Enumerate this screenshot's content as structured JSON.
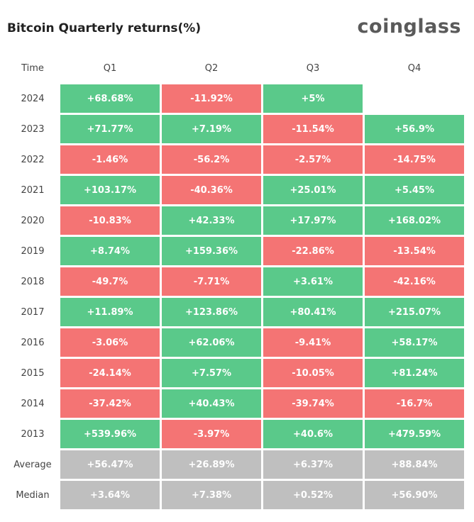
{
  "header": {
    "title": "Bitcoin Quarterly returns(%)",
    "logo": "coinglass"
  },
  "table": {
    "columns": [
      "Time",
      "Q1",
      "Q2",
      "Q3",
      "Q4"
    ],
    "colors": {
      "positive": "#5ac98a",
      "negative": "#f47474",
      "summary": "#bfbfbf"
    },
    "rows": [
      [
        "2024",
        "+68.68%",
        "-11.92%",
        "+5%",
        null
      ],
      [
        "2023",
        "+71.77%",
        "+7.19%",
        "-11.54%",
        "+56.9%"
      ],
      [
        "2022",
        "-1.46%",
        "-56.2%",
        "-2.57%",
        "-14.75%"
      ],
      [
        "2021",
        "+103.17%",
        "-40.36%",
        "+25.01%",
        "+5.45%"
      ],
      [
        "2020",
        "-10.83%",
        "+42.33%",
        "+17.97%",
        "+168.02%"
      ],
      [
        "2019",
        "+8.74%",
        "+159.36%",
        "-22.86%",
        "-13.54%"
      ],
      [
        "2018",
        "-49.7%",
        "-7.71%",
        "+3.61%",
        "-42.16%"
      ],
      [
        "2017",
        "+11.89%",
        "+123.86%",
        "+80.41%",
        "+215.07%"
      ],
      [
        "2016",
        "-3.06%",
        "+62.06%",
        "-9.41%",
        "+58.17%"
      ],
      [
        "2015",
        "-24.14%",
        "+7.57%",
        "-10.05%",
        "+81.24%"
      ],
      [
        "2014",
        "-37.42%",
        "+40.43%",
        "-39.74%",
        "-16.7%"
      ],
      [
        "2013",
        "+539.96%",
        "-3.97%",
        "+40.6%",
        "+479.59%"
      ]
    ],
    "summary_rows": [
      [
        "Average",
        "+56.47%",
        "+26.89%",
        "+6.37%",
        "+88.84%"
      ],
      [
        "Median",
        "+3.64%",
        "+7.38%",
        "+0.52%",
        "+56.90%"
      ]
    ]
  }
}
